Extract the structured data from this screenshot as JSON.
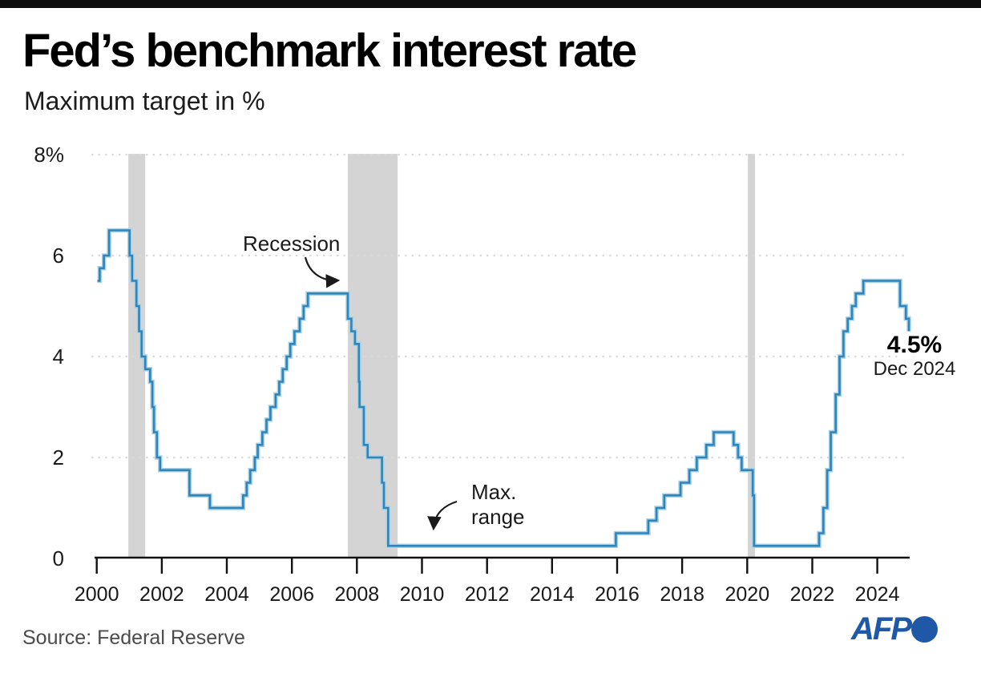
{
  "header": {
    "title": "Fed’s benchmark interest rate",
    "subtitle": "Maximum target in %"
  },
  "annotations": {
    "recession": "Recession",
    "max_range_line1": "Max.",
    "max_range_line2": "range",
    "end_value": "4.5%",
    "end_date": "Dec 2024"
  },
  "footer": {
    "source": "Source: Federal Reserve",
    "brand": "AFP"
  },
  "colors": {
    "line": "#2f85ba",
    "line_halo": "#a9d2e6",
    "recession_band": "#d4d4d4",
    "grid": "#d9d9d9",
    "axis": "#111111",
    "brand_blue": "#1e58a7",
    "topbar": "#0d0d0d"
  },
  "chart_data": {
    "type": "line",
    "subtype": "step",
    "title": "Fed’s benchmark interest rate",
    "ylabel": "Maximum target in %",
    "unit": "%",
    "ylim": [
      0,
      8
    ],
    "xlim": [
      2000,
      2025
    ],
    "grid": "dotted horizontal",
    "legend_position": "none",
    "yticks": [
      {
        "value": 8,
        "label": "8%"
      },
      {
        "value": 6,
        "label": "6"
      },
      {
        "value": 4,
        "label": "4"
      },
      {
        "value": 2,
        "label": "2"
      },
      {
        "value": 0,
        "label": "0"
      }
    ],
    "grid_values": [
      8,
      6,
      4,
      2
    ],
    "xticks": [
      2000,
      2002,
      2004,
      2006,
      2008,
      2010,
      2012,
      2014,
      2016,
      2018,
      2020,
      2022,
      2024
    ],
    "recessions": [
      {
        "start": 2000.97,
        "end": 2001.49
      },
      {
        "start": 2007.72,
        "end": 2009.25
      },
      {
        "start": 2020.02,
        "end": 2020.24
      }
    ],
    "series": [
      {
        "name": "Fed benchmark interest rate (maximum target, %)",
        "steps": [
          [
            2000.02,
            5.5
          ],
          [
            2000.09,
            5.75
          ],
          [
            2000.22,
            6.0
          ],
          [
            2000.38,
            6.5
          ],
          [
            2001.01,
            6.0
          ],
          [
            2001.09,
            5.5
          ],
          [
            2001.22,
            5.0
          ],
          [
            2001.3,
            4.5
          ],
          [
            2001.38,
            4.0
          ],
          [
            2001.49,
            3.75
          ],
          [
            2001.64,
            3.5
          ],
          [
            2001.71,
            3.0
          ],
          [
            2001.76,
            2.5
          ],
          [
            2001.85,
            2.0
          ],
          [
            2001.95,
            1.75
          ],
          [
            2002.85,
            1.25
          ],
          [
            2003.48,
            1.0
          ],
          [
            2004.5,
            1.25
          ],
          [
            2004.61,
            1.5
          ],
          [
            2004.72,
            1.75
          ],
          [
            2004.86,
            2.0
          ],
          [
            2004.95,
            2.25
          ],
          [
            2005.09,
            2.5
          ],
          [
            2005.22,
            2.75
          ],
          [
            2005.34,
            3.0
          ],
          [
            2005.5,
            3.25
          ],
          [
            2005.61,
            3.5
          ],
          [
            2005.72,
            3.75
          ],
          [
            2005.84,
            4.0
          ],
          [
            2005.95,
            4.25
          ],
          [
            2006.08,
            4.5
          ],
          [
            2006.24,
            4.75
          ],
          [
            2006.36,
            5.0
          ],
          [
            2006.49,
            5.25
          ],
          [
            2007.72,
            4.75
          ],
          [
            2007.83,
            4.5
          ],
          [
            2007.94,
            4.25
          ],
          [
            2008.06,
            3.5
          ],
          [
            2008.08,
            3.0
          ],
          [
            2008.21,
            2.25
          ],
          [
            2008.33,
            2.0
          ],
          [
            2008.77,
            1.5
          ],
          [
            2008.83,
            1.0
          ],
          [
            2008.96,
            0.25
          ],
          [
            2015.96,
            0.5
          ],
          [
            2016.96,
            0.75
          ],
          [
            2017.21,
            1.0
          ],
          [
            2017.45,
            1.25
          ],
          [
            2017.95,
            1.5
          ],
          [
            2018.22,
            1.75
          ],
          [
            2018.45,
            2.0
          ],
          [
            2018.74,
            2.25
          ],
          [
            2018.97,
            2.5
          ],
          [
            2019.58,
            2.25
          ],
          [
            2019.72,
            2.0
          ],
          [
            2019.83,
            1.75
          ],
          [
            2020.17,
            1.25
          ],
          [
            2020.21,
            0.25
          ],
          [
            2022.21,
            0.5
          ],
          [
            2022.34,
            1.0
          ],
          [
            2022.46,
            1.75
          ],
          [
            2022.57,
            2.5
          ],
          [
            2022.72,
            3.25
          ],
          [
            2022.84,
            4.0
          ],
          [
            2022.96,
            4.5
          ],
          [
            2023.09,
            4.75
          ],
          [
            2023.22,
            5.0
          ],
          [
            2023.34,
            5.25
          ],
          [
            2023.57,
            5.5
          ],
          [
            2024.7,
            5.0
          ],
          [
            2024.88,
            4.75
          ],
          [
            2024.97,
            4.5
          ]
        ]
      }
    ],
    "end_point": {
      "x": "Dec 2024",
      "value": 4.5
    }
  }
}
